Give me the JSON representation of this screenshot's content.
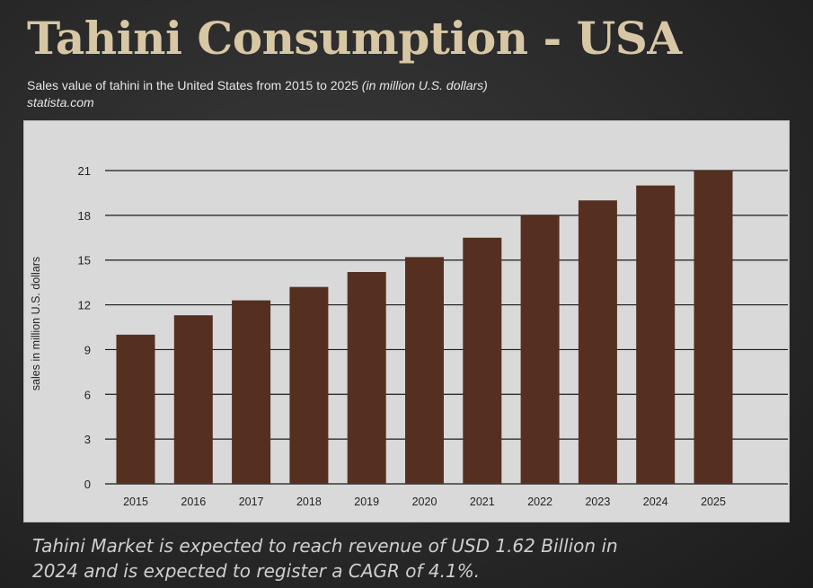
{
  "header": {
    "title": "Tahini Consumption - USA",
    "subtitle_main": "Sales value of tahini in the United States from 2015 to 2025",
    "subtitle_unit": "(in million U.S. dollars)",
    "source": "statista.com"
  },
  "caption": "Tahini Market is expected to reach revenue of USD 1.62 Billion in 2024 and is expected to register a CAGR of 4.1%.",
  "chart_data": {
    "type": "bar",
    "categories": [
      "2015",
      "2016",
      "2017",
      "2018",
      "2019",
      "2020",
      "2021",
      "2022",
      "2023",
      "2024",
      "2025"
    ],
    "values": [
      10.0,
      11.3,
      12.3,
      13.2,
      14.2,
      15.2,
      16.5,
      18.0,
      19.0,
      20.0,
      21.0
    ],
    "ylabel": "sales in million U.S. dollars",
    "xlabel": "",
    "ylim": [
      0,
      21
    ],
    "yticks": [
      0,
      3,
      6,
      9,
      12,
      15,
      18,
      21
    ],
    "grid": true,
    "bar_color": "#552f20"
  }
}
